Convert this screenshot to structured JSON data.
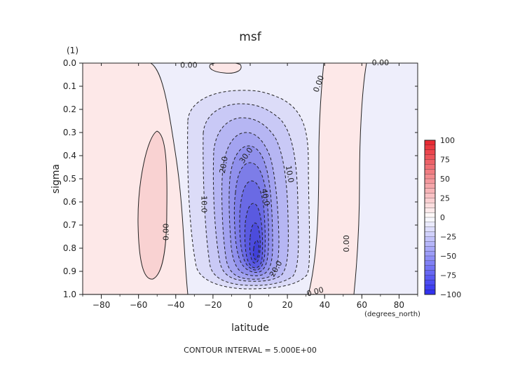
{
  "chart_data": {
    "type": "contour",
    "title": "msf",
    "xlabel": "latitude",
    "xunits": "(degrees_north)",
    "ylabel": "sigma",
    "yunits": "(1)",
    "xlim": [
      -90,
      90
    ],
    "ylim": [
      0.0,
      1.0
    ],
    "y_inverted": true,
    "xticks": [
      -80,
      -60,
      -40,
      -20,
      0,
      20,
      40,
      60,
      80
    ],
    "xtick_labels": [
      "−80",
      "−60",
      "−40",
      "−20",
      "0",
      "20",
      "40",
      "60",
      "80"
    ],
    "yticks": [
      0.0,
      0.1,
      0.2,
      0.3,
      0.4,
      0.5,
      0.6,
      0.7,
      0.8,
      0.9,
      1.0
    ],
    "ytick_labels": [
      "0.0",
      "0.1",
      "0.2",
      "0.3",
      "0.4",
      "0.5",
      "0.6",
      "0.7",
      "0.8",
      "0.9",
      "1.0"
    ],
    "contour_interval": 5.0,
    "footer": "CONTOUR INTERVAL = 5.000E+00",
    "contour_labels": [
      {
        "text": "0.00",
        "lat": -45,
        "sigma": 0.73,
        "angle": -90
      },
      {
        "text": "0.00",
        "lat": -33,
        "sigma": 0.01,
        "angle": 0
      },
      {
        "text": "0.00",
        "lat": 37,
        "sigma": 0.09,
        "angle": -70
      },
      {
        "text": "0.00",
        "lat": 70,
        "sigma": 0.0,
        "angle": 0
      },
      {
        "text": "0.00",
        "lat": 52,
        "sigma": 0.78,
        "angle": -90
      },
      {
        "text": "0.00",
        "lat": 35,
        "sigma": 0.99,
        "angle": -15
      },
      {
        "text": "10.0",
        "lat": -25,
        "sigma": 0.61,
        "angle": 90
      },
      {
        "text": "20.0",
        "lat": -14,
        "sigma": 0.44,
        "angle": -80
      },
      {
        "text": "30.0",
        "lat": -2,
        "sigma": 0.4,
        "angle": -55
      },
      {
        "text": "40.0",
        "lat": 8,
        "sigma": 0.58,
        "angle": 80
      },
      {
        "text": "10.0",
        "lat": 21,
        "sigma": 0.48,
        "angle": 80
      },
      {
        "text": "20.0",
        "lat": 14,
        "sigma": 0.89,
        "angle": -60
      }
    ],
    "colorbar": {
      "levels": [
        100,
        75,
        50,
        25,
        0,
        -25,
        -50,
        -75,
        -100
      ],
      "labels": [
        "100",
        "75",
        "50",
        "25",
        "0",
        "−25",
        "−50",
        "−75",
        "−100"
      ],
      "positive_color": "#e8242d",
      "negative_color": "#2b2bf0"
    },
    "min_center": {
      "lat": 5,
      "sigma": 0.85,
      "value": -55
    }
  }
}
